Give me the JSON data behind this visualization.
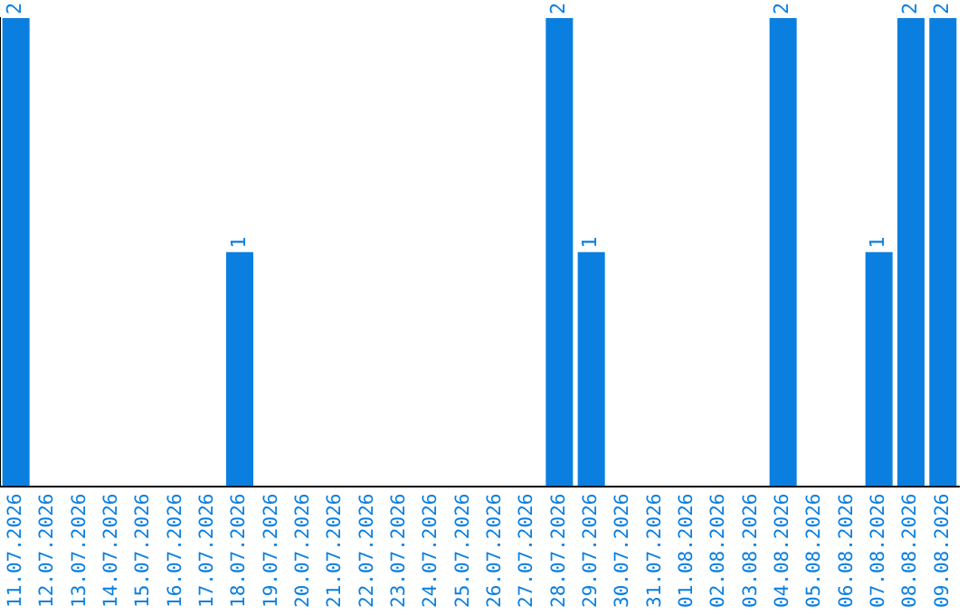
{
  "chart_data": {
    "type": "bar",
    "categories": [
      "11.07.2026",
      "12.07.2026",
      "13.07.2026",
      "14.07.2026",
      "15.07.2026",
      "16.07.2026",
      "17.07.2026",
      "18.07.2026",
      "19.07.2026",
      "20.07.2026",
      "21.07.2026",
      "22.07.2026",
      "23.07.2026",
      "24.07.2026",
      "25.07.2026",
      "26.07.2026",
      "27.07.2026",
      "28.07.2026",
      "29.07.2026",
      "30.07.2026",
      "31.07.2026",
      "01.08.2026",
      "02.08.2026",
      "03.08.2026",
      "04.08.2026",
      "05.08.2026",
      "06.08.2026",
      "07.08.2026",
      "08.08.2026",
      "09.08.2026"
    ],
    "values": [
      2,
      0,
      0,
      0,
      0,
      0,
      0,
      1,
      0,
      0,
      0,
      0,
      0,
      0,
      0,
      0,
      0,
      2,
      1,
      0,
      0,
      0,
      0,
      0,
      2,
      0,
      0,
      1,
      2,
      2
    ],
    "value_labels": [
      "2",
      null,
      null,
      null,
      null,
      null,
      null,
      "1",
      null,
      null,
      null,
      null,
      null,
      null,
      null,
      null,
      null,
      "2",
      "1",
      null,
      null,
      null,
      null,
      null,
      "2",
      null,
      null,
      "1",
      "2",
      "2"
    ],
    "color": "#0a7fe0",
    "grid": false,
    "legend": false,
    "tick_labels": "x"
  }
}
